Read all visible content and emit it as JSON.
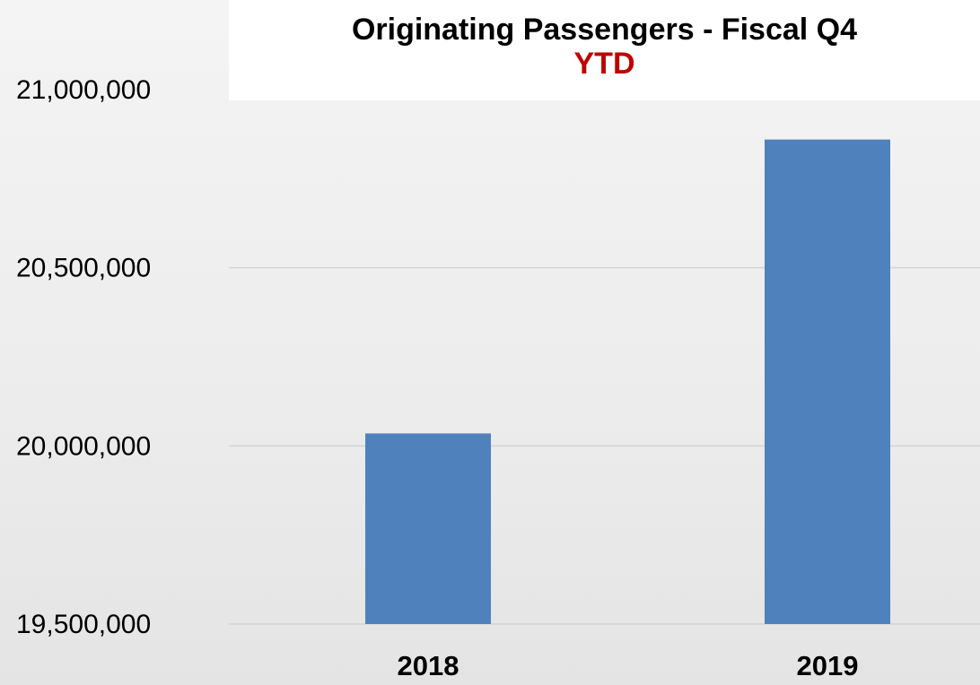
{
  "chart_data": {
    "type": "bar",
    "title": "Originating Passengers - Fiscal Q4",
    "subtitle": "YTD",
    "categories": [
      "2018",
      "2019"
    ],
    "values": [
      20035000,
      20860000
    ],
    "color": "#4f81bd",
    "ylim": [
      19500000,
      21000000
    ],
    "yticks": [
      {
        "value": 19500000,
        "label": "19,500,000"
      },
      {
        "value": 20000000,
        "label": "20,000,000"
      },
      {
        "value": 20500000,
        "label": "20,500,000"
      },
      {
        "value": 21000000,
        "label": "21,000,000"
      }
    ],
    "grid": true
  }
}
